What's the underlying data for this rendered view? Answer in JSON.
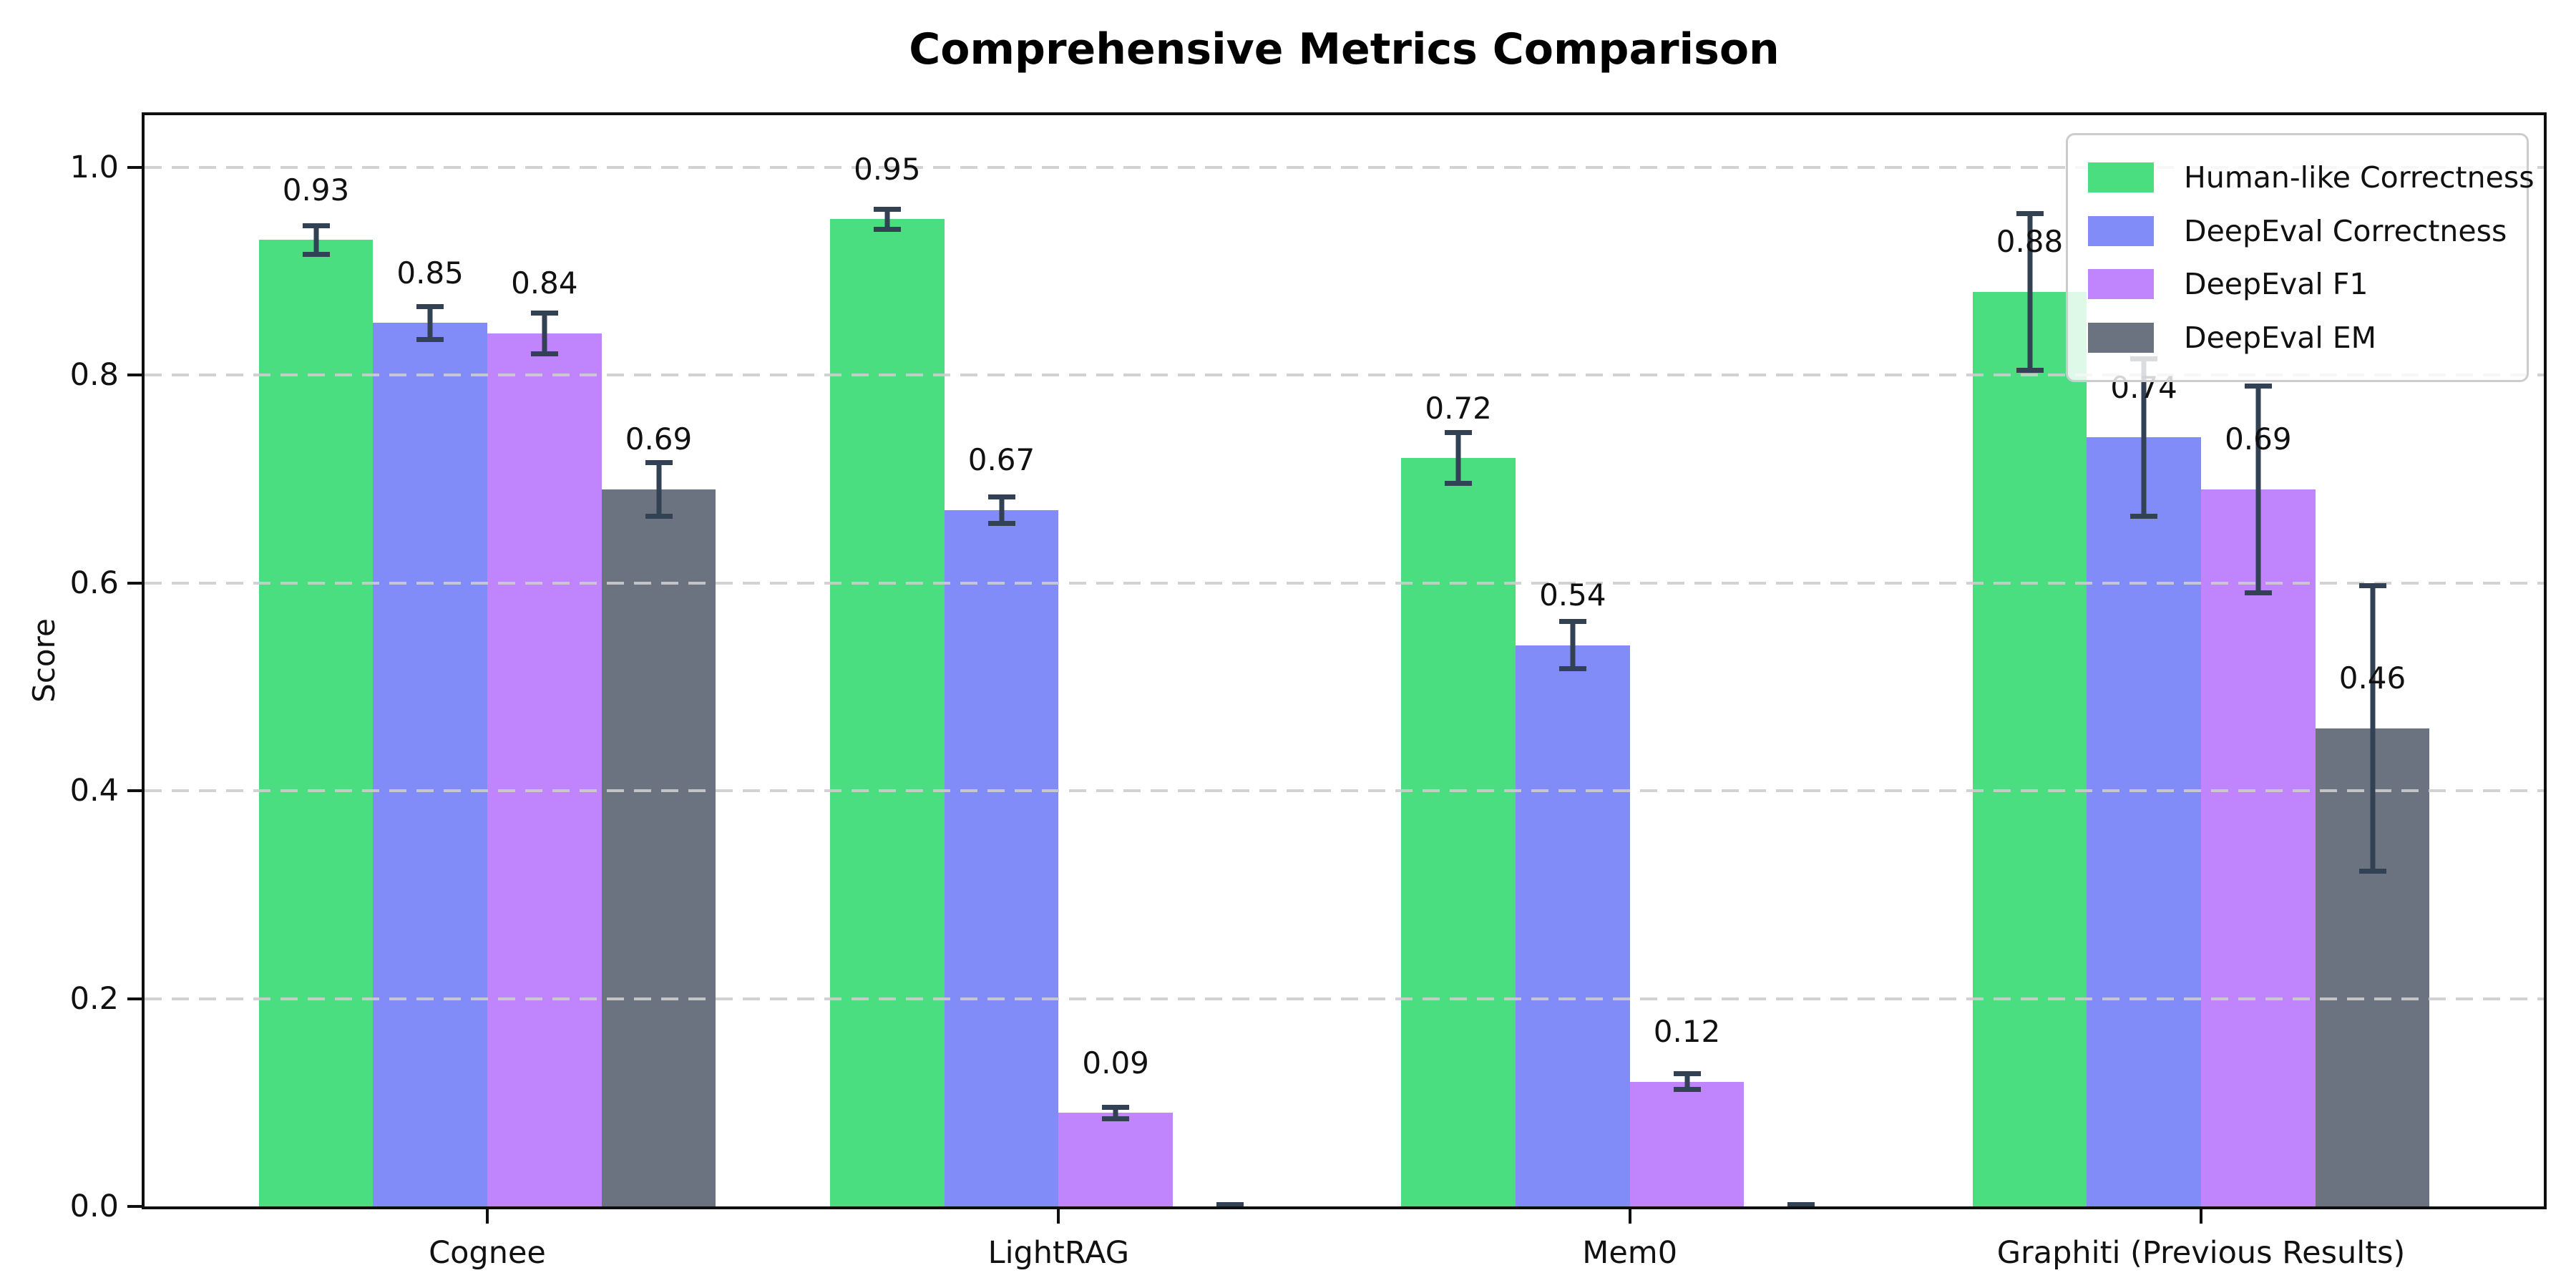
{
  "chart_data": {
    "type": "bar",
    "title": "Comprehensive Metrics Comparison",
    "xlabel": "",
    "ylabel": "Score",
    "ylim": [
      0,
      1.05
    ],
    "yticks": [
      0.0,
      0.2,
      0.4,
      0.6,
      0.8,
      1.0
    ],
    "ytick_labels": [
      "0.0",
      "0.2",
      "0.4",
      "0.6",
      "0.8",
      "1.0"
    ],
    "grid": "horizontal-dashed",
    "grid_color": "#cdcdcd",
    "legend_position": "upper right",
    "error_bar_color": "#334155",
    "categories": [
      "Cognee",
      "LightRAG",
      "Mem0",
      "Graphiti (Previous Results)"
    ],
    "series": [
      {
        "name": "Human-like Correctness",
        "color": "#4ade80",
        "values": [
          0.93,
          0.95,
          0.72,
          0.88
        ],
        "errors": [
          0.016,
          0.012,
          0.027,
          0.078
        ],
        "labels": [
          "0.93",
          "0.95",
          "0.72",
          "0.88"
        ]
      },
      {
        "name": "DeepEval Correctness",
        "color": "#818cf8",
        "values": [
          0.85,
          0.67,
          0.54,
          0.74
        ],
        "errors": [
          0.018,
          0.015,
          0.025,
          0.078
        ],
        "labels": [
          "0.85",
          "0.67",
          "0.54",
          "0.74"
        ]
      },
      {
        "name": "DeepEval F1",
        "color": "#c084fc",
        "values": [
          0.84,
          0.09,
          0.12,
          0.69
        ],
        "errors": [
          0.022,
          0.008,
          0.01,
          0.102
        ],
        "labels": [
          "0.84",
          "0.09",
          "0.12",
          "0.69"
        ]
      },
      {
        "name": "DeepEval EM",
        "color": "#6b7280",
        "values": [
          0.69,
          0.0,
          0.0,
          0.46
        ],
        "errors": [
          0.028,
          0.004,
          0.004,
          0.14
        ],
        "labels": [
          "0.69",
          "",
          "",
          "0.46"
        ]
      }
    ]
  }
}
